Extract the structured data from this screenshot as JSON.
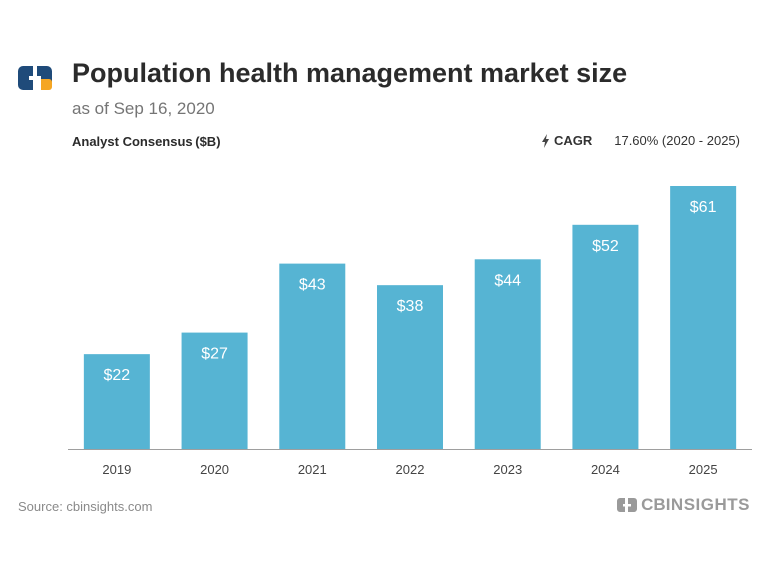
{
  "header": {
    "title": "Population health management market size",
    "subtitle": "as of Sep 16, 2020",
    "series_label": "Analyst Consensus ($B)",
    "cagr_label": "CAGR",
    "cagr_value": "17.60% (2020 - 2025)"
  },
  "footer": {
    "source": "Source: cbinsights.com",
    "brand_prefix": "CB",
    "brand_suffix": "INSIGHTS"
  },
  "colors": {
    "bar": "#56b4d3",
    "axis": "#9e9e9e",
    "logo_blue": "#1f4b7a",
    "logo_orange": "#f5a623"
  },
  "chart_data": {
    "type": "bar",
    "title": "Population health management market size",
    "ylabel": "Analyst Consensus ($B)",
    "xlabel": "",
    "categories": [
      "2019",
      "2020",
      "2021",
      "2022",
      "2023",
      "2024",
      "2025"
    ],
    "values": [
      22,
      27,
      43,
      38,
      44,
      52,
      61
    ],
    "value_labels": [
      "$22",
      "$27",
      "$43",
      "$38",
      "$44",
      "$52",
      "$61"
    ],
    "ylim": [
      0,
      61
    ],
    "grid": false
  }
}
